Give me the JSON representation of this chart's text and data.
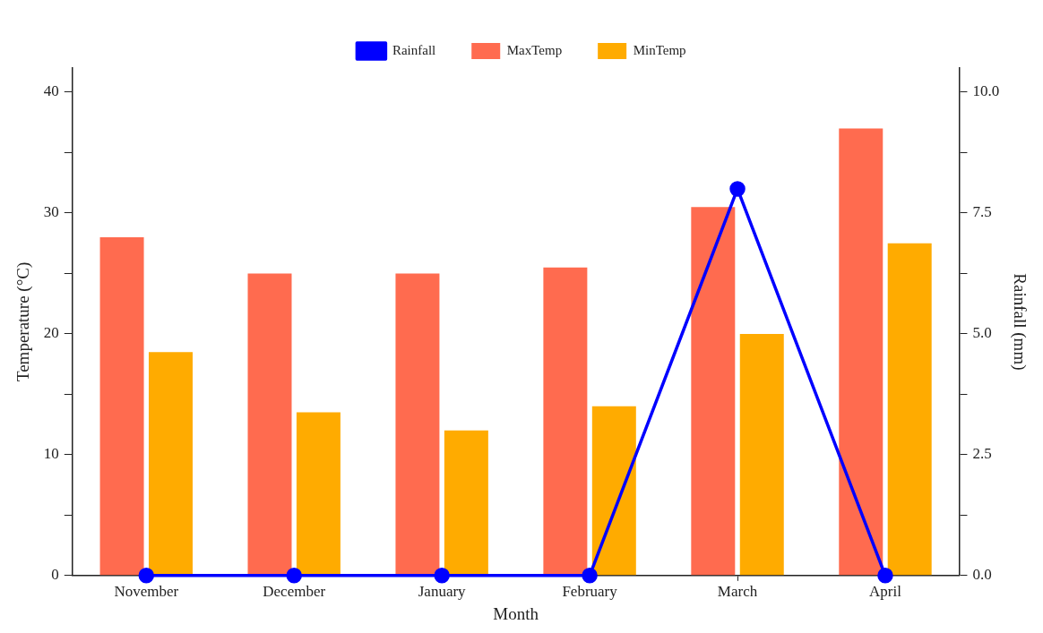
{
  "chart_data": {
    "type": "bar",
    "xlabel": "Month",
    "ylabel": "Temperature (°C)",
    "y2label": "Rainfall (mm)",
    "categories": [
      "November",
      "December",
      "January",
      "February",
      "March",
      "April"
    ],
    "series": [
      {
        "name": "Rainfall",
        "type": "line",
        "axis": "y2",
        "color": "#0000ff",
        "marker": "circle",
        "values": [
          0,
          0,
          0,
          0,
          8,
          0
        ]
      },
      {
        "name": "MaxTemp",
        "color": "#ff6b4f",
        "values": [
          28,
          25,
          25,
          25.5,
          30.5,
          37
        ]
      },
      {
        "name": "MinTemp",
        "color": "#ffab00",
        "values": [
          18.5,
          13.5,
          12,
          14,
          20,
          27.5
        ]
      }
    ],
    "ylim": [
      0,
      42
    ],
    "yticks": [
      0,
      {
        "value": 5,
        "label": null
      },
      10,
      {
        "value": 15,
        "label": null
      },
      20,
      {
        "value": 25,
        "label": null
      },
      30,
      {
        "value": 35,
        "label": null
      },
      40
    ],
    "y2lim": [
      0,
      10.5
    ],
    "y2ticks": [
      {
        "value": 0,
        "label": "0.0"
      },
      {
        "value": 1.25,
        "label": null
      },
      {
        "value": 2.5,
        "label": "2.5"
      },
      {
        "value": 3.75,
        "label": null
      },
      {
        "value": 5,
        "label": "5.0"
      },
      {
        "value": 6.25,
        "label": null
      },
      {
        "value": 7.5,
        "label": "7.5"
      },
      {
        "value": 8.75,
        "label": null
      },
      {
        "value": 10,
        "label": "10.0"
      }
    ],
    "grid": false,
    "legend": "top"
  }
}
